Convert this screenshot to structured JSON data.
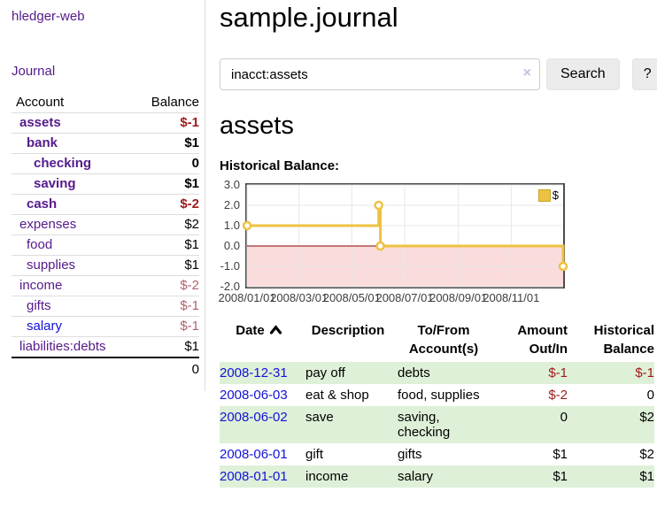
{
  "app": {
    "title": "hledger-web"
  },
  "colors": {
    "link_purple": "#551a8b",
    "link_blue": "#1212d8",
    "negative_strong": "#9d1b1b",
    "negative_soft": "#b2616b",
    "row_stripe_green": "#dff0d8",
    "chart_line_gold": "#edc240",
    "chart_negative_fill": "#fadcdc",
    "chart_zero_line": "#8b0000"
  },
  "sidebar": {
    "journal_link": "Journal",
    "accounts_table": {
      "headers": {
        "account": "Account",
        "balance": "Balance"
      },
      "rows": [
        {
          "name": "assets",
          "balance": "$-1",
          "depth": 1,
          "bold": true,
          "balance_class": "neg"
        },
        {
          "name": "bank",
          "balance": "$1",
          "depth": 2,
          "bold": true,
          "balance_class": ""
        },
        {
          "name": "checking",
          "balance": "0",
          "depth": 3,
          "bold": true,
          "balance_class": ""
        },
        {
          "name": "saving",
          "balance": "$1",
          "depth": 3,
          "bold": true,
          "balance_class": ""
        },
        {
          "name": "cash",
          "balance": "$-2",
          "depth": 2,
          "bold": true,
          "balance_class": "neg"
        },
        {
          "name": "expenses",
          "balance": "$2",
          "depth": 1,
          "bold": false,
          "balance_class": ""
        },
        {
          "name": "food",
          "balance": "$1",
          "depth": 2,
          "bold": false,
          "balance_class": ""
        },
        {
          "name": "supplies",
          "balance": "$1",
          "depth": 2,
          "bold": false,
          "balance_class": ""
        },
        {
          "name": "income",
          "balance": "$-2",
          "depth": 1,
          "bold": false,
          "balance_class": "negsoft"
        },
        {
          "name": "gifts",
          "balance": "$-1",
          "depth": 2,
          "bold": false,
          "balance_class": "negsoft"
        },
        {
          "name": "salary",
          "balance": "$-1",
          "depth": 2,
          "bold": false,
          "balance_class": "negsoft",
          "link_class": "unvisited"
        },
        {
          "name": "liabilities:debts",
          "balance": "$1",
          "depth": 1,
          "bold": false,
          "balance_class": ""
        }
      ],
      "total": "0"
    }
  },
  "main": {
    "title": "sample.journal",
    "search": {
      "value": "inacct:assets",
      "clear_icon": "×",
      "button_label": "Search",
      "help_label": "?"
    },
    "account_heading": "assets",
    "chart_heading": "Historical Balance:"
  },
  "chart_data": {
    "type": "line",
    "step": true,
    "title": "Historical Balance",
    "x_range": [
      "2008-01-01",
      "2008-12-31"
    ],
    "x_ticks": [
      {
        "date": "2008-01-01",
        "label": "2008/01/01"
      },
      {
        "date": "2008-03-01",
        "label": "2008/03/01"
      },
      {
        "date": "2008-05-01",
        "label": "2008/05/01"
      },
      {
        "date": "2008-07-01",
        "label": "2008/07/01"
      },
      {
        "date": "2008-09-01",
        "label": "2008/09/01"
      },
      {
        "date": "2008-11-01",
        "label": "2008/11/01"
      }
    ],
    "y_ticks": [
      3.0,
      2.0,
      1.0,
      0.0,
      -1.0,
      -2.0
    ],
    "ylim": [
      -2.0,
      3.0
    ],
    "series": [
      {
        "name": "$",
        "color": "#edc240",
        "points": [
          [
            "2008-01-01",
            1
          ],
          [
            "2008-06-01",
            2
          ],
          [
            "2008-06-03",
            0
          ],
          [
            "2008-12-31",
            -1
          ]
        ]
      }
    ],
    "legend": {
      "label": "$",
      "position": "top-right"
    },
    "grid": true,
    "negative_region_fill": "#fadcdc",
    "zero_line_color": "#8b0000"
  },
  "register": {
    "columns": [
      {
        "lines": [
          "Date"
        ],
        "align": "left",
        "sort": "asc"
      },
      {
        "lines": [
          "Description"
        ],
        "align": "left"
      },
      {
        "lines": [
          "To/From",
          "Account(s)"
        ],
        "align": "left"
      },
      {
        "lines": [
          "Amount",
          "Out/In"
        ],
        "align": "right"
      },
      {
        "lines": [
          "Historical",
          "Balance"
        ],
        "align": "right"
      }
    ],
    "rows": [
      {
        "date": "2008-12-31",
        "description": "pay off",
        "accounts": "debts",
        "amount": "$-1",
        "amount_class": "neg",
        "balance": "$-1",
        "balance_class": "neg",
        "shaded": true
      },
      {
        "date": "2008-06-03",
        "description": "eat & shop",
        "accounts": "food, supplies",
        "amount": "$-2",
        "amount_class": "neg",
        "balance": "0",
        "balance_class": "",
        "shaded": false
      },
      {
        "date": "2008-06-02",
        "description": "save",
        "accounts": "saving, checking",
        "amount": "0",
        "amount_class": "",
        "balance": "$2",
        "balance_class": "",
        "shaded": true
      },
      {
        "date": "2008-06-01",
        "description": "gift",
        "accounts": "gifts",
        "amount": "$1",
        "amount_class": "",
        "balance": "$2",
        "balance_class": "",
        "shaded": false
      },
      {
        "date": "2008-01-01",
        "description": "income",
        "accounts": "salary",
        "amount": "$1",
        "amount_class": "",
        "balance": "$1",
        "balance_class": "",
        "shaded": true
      }
    ]
  }
}
